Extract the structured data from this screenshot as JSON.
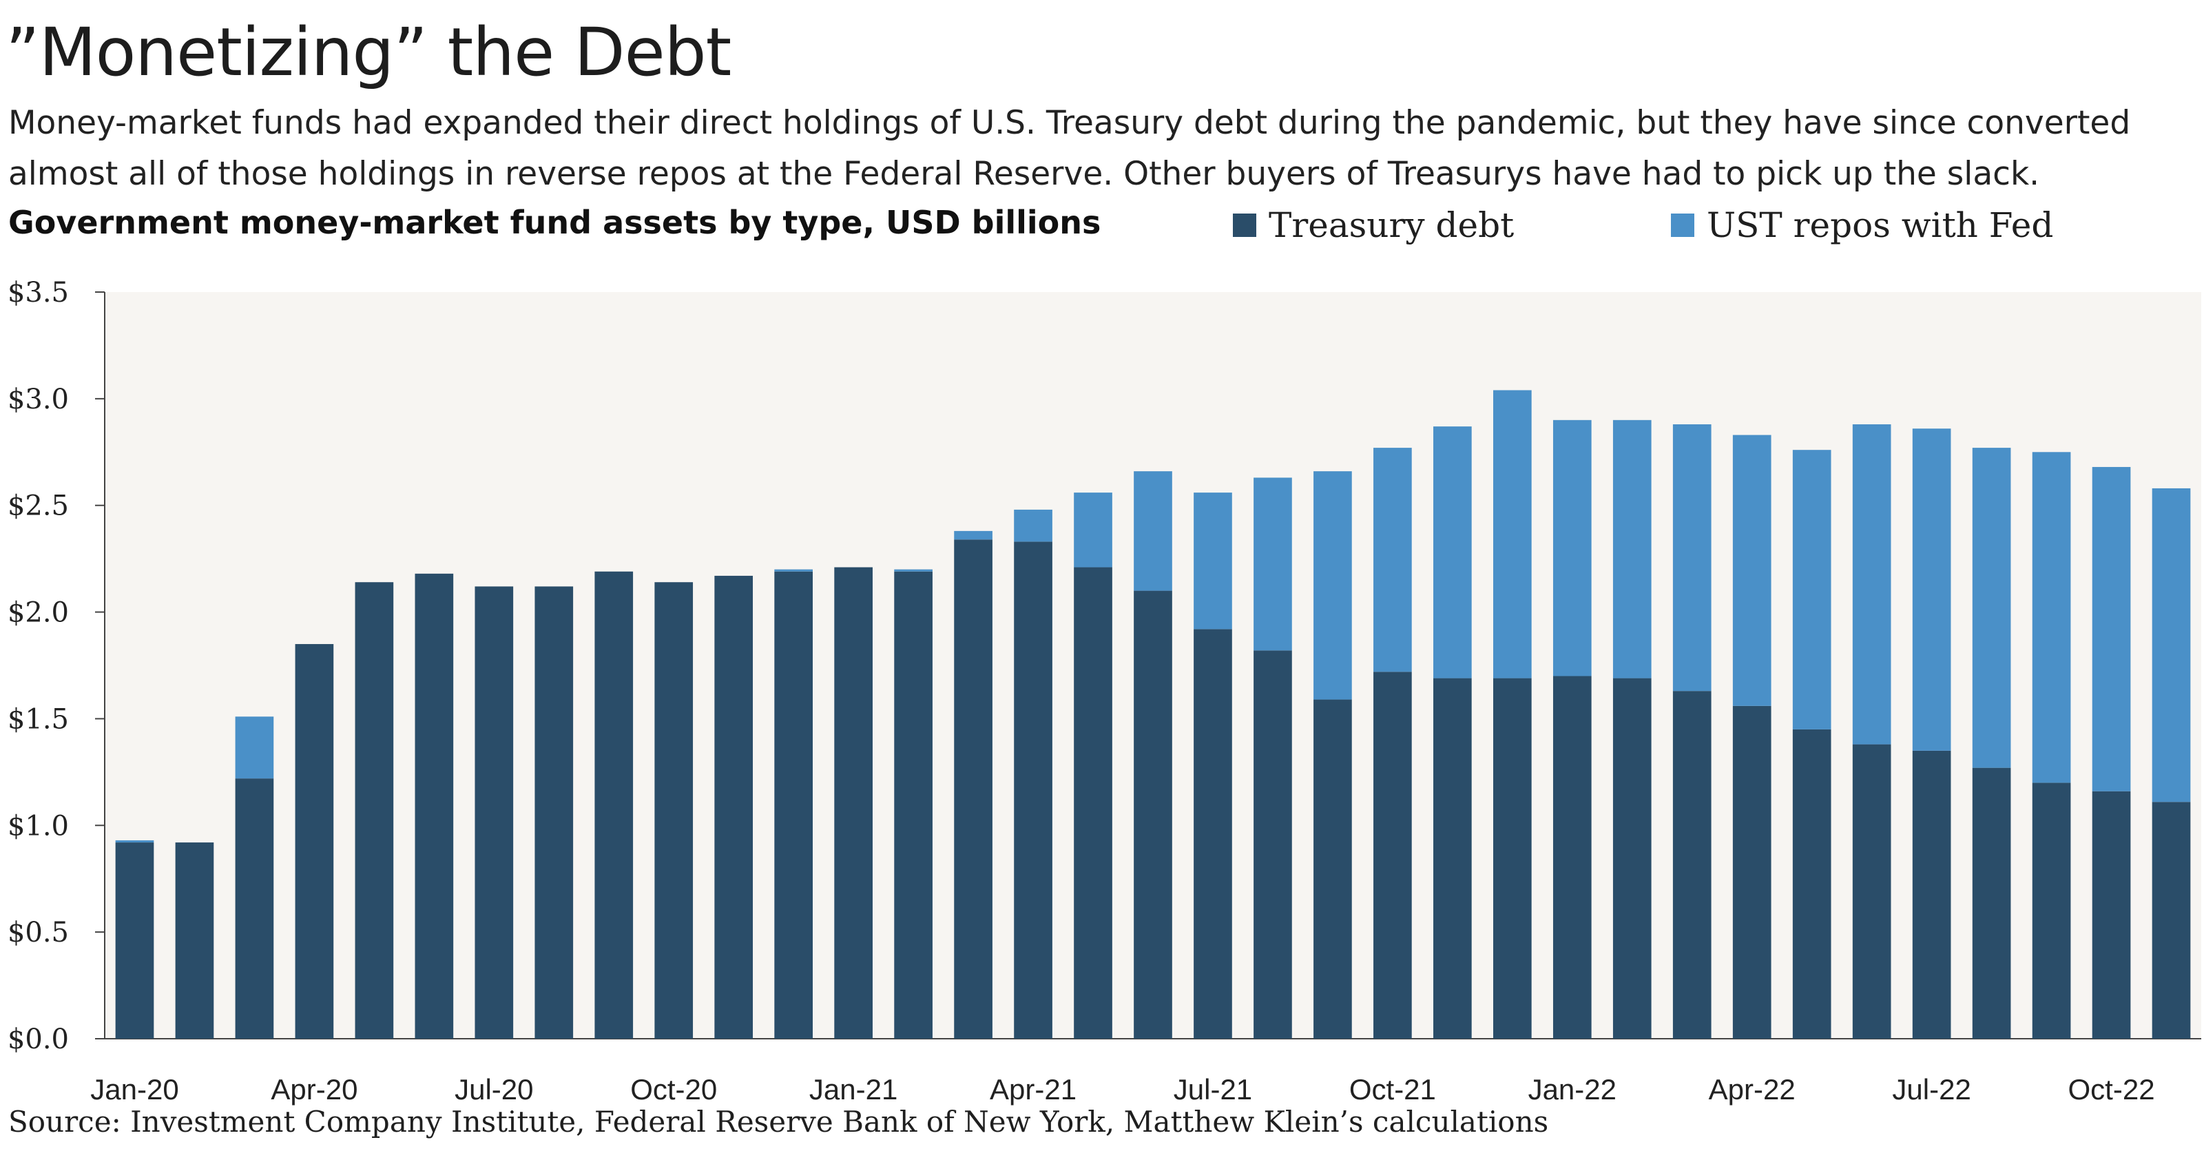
{
  "title": "”Monetizing” the Debt",
  "subtitle": "Money-market funds had expanded their direct holdings of U.S. Treasury debt during the pandemic, but they have since converted almost all of those holdings in reverse repos at the Federal Reserve. Other buyers of Treasurys have had to pick up the slack.",
  "chart_label": "Government money-market fund assets by type, USD billions",
  "source": "Source: Investment Company Institute, Federal Reserve Bank of New York, Matthew Klein’s calculations",
  "colors": {
    "treasury": "#2a4d69",
    "repos": "#4a90c8",
    "plot_bg": "#f7f5f2",
    "axis": "#444444"
  },
  "chart_data": {
    "type": "bar",
    "stacked": true,
    "title": "Government money-market fund assets by type, USD billions",
    "ylim": [
      0,
      3.5
    ],
    "y_ticks": [
      "$0.0",
      "$0.5",
      "$1.0",
      "$1.5",
      "$2.0",
      "$2.5",
      "$3.0",
      "$3.5"
    ],
    "y_tick_values": [
      0,
      0.5,
      1.0,
      1.5,
      2.0,
      2.5,
      3.0,
      3.5
    ],
    "x_tick_labels": [
      {
        "index": 0,
        "label": "Jan-20"
      },
      {
        "index": 3,
        "label": "Apr-20"
      },
      {
        "index": 6,
        "label": "Jul-20"
      },
      {
        "index": 9,
        "label": "Oct-20"
      },
      {
        "index": 12,
        "label": "Jan-21"
      },
      {
        "index": 15,
        "label": "Apr-21"
      },
      {
        "index": 18,
        "label": "Jul-21"
      },
      {
        "index": 21,
        "label": "Oct-21"
      },
      {
        "index": 24,
        "label": "Jan-22"
      },
      {
        "index": 27,
        "label": "Apr-22"
      },
      {
        "index": 30,
        "label": "Jul-22"
      },
      {
        "index": 33,
        "label": "Oct-22"
      }
    ],
    "categories": [
      "Jan-20",
      "Feb-20",
      "Mar-20",
      "Apr-20",
      "May-20",
      "Jun-20",
      "Jul-20",
      "Aug-20",
      "Sep-20",
      "Oct-20",
      "Nov-20",
      "Dec-20",
      "Jan-21",
      "Feb-21",
      "Mar-21",
      "Apr-21",
      "May-21",
      "Jun-21",
      "Jul-21",
      "Aug-21",
      "Sep-21",
      "Oct-21",
      "Nov-21",
      "Dec-21",
      "Jan-22",
      "Feb-22",
      "Mar-22",
      "Apr-22",
      "May-22",
      "Jun-22",
      "Jul-22",
      "Aug-22",
      "Sep-22",
      "Oct-22",
      "Nov-22"
    ],
    "series": [
      {
        "name": "Treasury debt",
        "values": [
          0.92,
          0.92,
          1.22,
          1.85,
          2.14,
          2.18,
          2.12,
          2.12,
          2.19,
          2.14,
          2.17,
          2.19,
          2.21,
          2.19,
          2.34,
          2.33,
          2.21,
          2.1,
          1.92,
          1.82,
          1.59,
          1.72,
          1.69,
          1.69,
          1.7,
          1.69,
          1.63,
          1.56,
          1.45,
          1.38,
          1.35,
          1.27,
          1.2,
          1.16,
          1.11
        ]
      },
      {
        "name": "UST repos with Fed",
        "values": [
          0.01,
          0.0,
          0.29,
          0.0,
          0.0,
          0.0,
          0.0,
          0.0,
          0.0,
          0.0,
          0.0,
          0.01,
          0.0,
          0.01,
          0.04,
          0.15,
          0.35,
          0.56,
          0.64,
          0.81,
          1.07,
          1.05,
          1.18,
          1.35,
          1.2,
          1.21,
          1.25,
          1.27,
          1.31,
          1.5,
          1.51,
          1.5,
          1.55,
          1.52,
          1.47
        ]
      }
    ],
    "grid": false,
    "legend_position": "top-right"
  }
}
